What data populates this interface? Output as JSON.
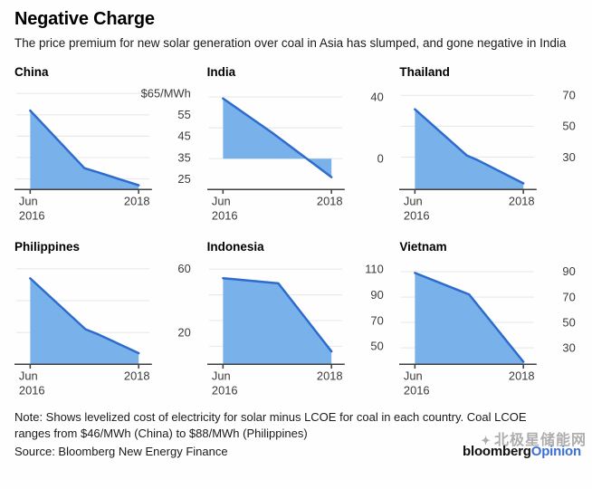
{
  "header": {
    "title": "Negative Charge",
    "subtitle": "The price premium for new solar generation over coal in Asia has slumped, and gone negative in India"
  },
  "footer": {
    "note": "Note: Shows levelized cost of electricity for solar minus LCOE for coal in each country. Coal LCOE ranges from $46/MWh (China) to $88/MWh (Philippines)",
    "source": "Source: Bloomberg New Energy Finance",
    "logo_black": "bloomberg",
    "logo_blue": "Opinion",
    "watermark_icon": "✦",
    "watermark_text": "北极星储能网"
  },
  "colors": {
    "fill": "#79b1ea",
    "line": "#2d6bcd",
    "grid": "#e9e9e9",
    "axis": "#404040",
    "label": "#3a3a3a"
  },
  "chart_data": {
    "type": "area",
    "unit": "$/MWh",
    "x_labels": {
      "left": [
        "Jun",
        "2016"
      ],
      "right": "2018"
    },
    "x_range": [
      "Jun 2016",
      "2018"
    ],
    "charts": [
      {
        "title": "China",
        "ymin": 20,
        "ymax": 67,
        "fill_baseline": 20,
        "gridlines": [
          65,
          55,
          45,
          35,
          25
        ],
        "y_labels": [
          {
            "v": 65,
            "t": "$65/MWh"
          },
          {
            "v": 55,
            "t": "55"
          },
          {
            "v": 45,
            "t": "45"
          },
          {
            "v": 35,
            "t": "35"
          },
          {
            "v": 25,
            "t": "25"
          }
        ],
        "points": [
          [
            0,
            57
          ],
          [
            0.5,
            30
          ],
          [
            0.63,
            28
          ],
          [
            1,
            22
          ]
        ]
      },
      {
        "title": "India",
        "ymin": -20,
        "ymax": 45,
        "fill_baseline": 0,
        "gridlines": [
          40,
          20,
          0
        ],
        "y_labels": [
          {
            "v": 40,
            "t": "40"
          },
          {
            "v": 0,
            "t": "0"
          }
        ],
        "points": [
          [
            0,
            39
          ],
          [
            0.45,
            17
          ],
          [
            1,
            -12
          ]
        ]
      },
      {
        "title": "Thailand",
        "ymin": 9,
        "ymax": 74,
        "fill_baseline": 9,
        "gridlines": [
          70,
          50,
          30
        ],
        "y_labels": [
          {
            "v": 70,
            "t": "70"
          },
          {
            "v": 50,
            "t": "50"
          },
          {
            "v": 30,
            "t": "30"
          }
        ],
        "points": [
          [
            0,
            61
          ],
          [
            0.48,
            31
          ],
          [
            0.58,
            28
          ],
          [
            1,
            13
          ]
        ]
      },
      {
        "title": "Philippines",
        "ymin": 0,
        "ymax": 63,
        "fill_baseline": 0,
        "gridlines": [
          60,
          40,
          20
        ],
        "y_labels": [
          {
            "v": 60,
            "t": "60"
          },
          {
            "v": 20,
            "t": "20"
          }
        ],
        "points": [
          [
            0,
            54
          ],
          [
            0.51,
            22
          ],
          [
            0.62,
            19
          ],
          [
            1,
            7
          ]
        ]
      },
      {
        "title": "Indonesia",
        "ymin": 36,
        "ymax": 114,
        "fill_baseline": 36,
        "gridlines": [
          110,
          90,
          70,
          50
        ],
        "y_labels": [
          {
            "v": 110,
            "t": "110"
          },
          {
            "v": 90,
            "t": "90"
          },
          {
            "v": 70,
            "t": "70"
          },
          {
            "v": 50,
            "t": "50"
          }
        ],
        "points": [
          [
            0,
            103
          ],
          [
            0.51,
            99
          ],
          [
            1,
            46
          ]
        ]
      },
      {
        "title": "Vietnam",
        "ymin": 17,
        "ymax": 96,
        "fill_baseline": 17,
        "gridlines": [
          90,
          70,
          50,
          30
        ],
        "y_labels": [
          {
            "v": 90,
            "t": "90"
          },
          {
            "v": 70,
            "t": "70"
          },
          {
            "v": 50,
            "t": "50"
          },
          {
            "v": 30,
            "t": "30"
          }
        ],
        "points": [
          [
            0,
            89
          ],
          [
            0.5,
            72
          ],
          [
            1,
            19
          ]
        ]
      }
    ]
  }
}
